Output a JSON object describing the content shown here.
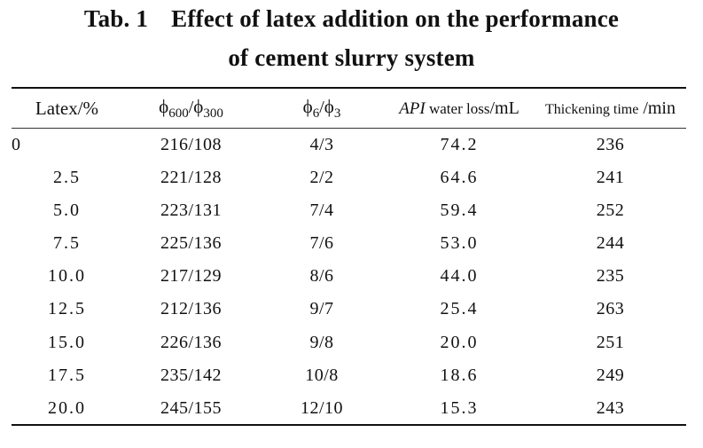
{
  "title": {
    "tab_label": "Tab. 1",
    "line1": "Effect of latex addition on the performance",
    "line2": "of cement slurry system"
  },
  "header": {
    "col0": "Latex/%",
    "col1_sym_a": "ϕ",
    "col1_sub_a": "600",
    "col1_sep": "/",
    "col1_sym_b": "ϕ",
    "col1_sub_b": "300",
    "col2_sym_a": "ϕ",
    "col2_sub_a": "6",
    "col2_sep": "/",
    "col2_sym_b": "ϕ",
    "col2_sub_b": "3",
    "col3_italic": "API",
    "col3_text": " water loss",
    "col3_unit": "/mL",
    "col4_text": "Thickening time",
    "col4_unit": " /min"
  },
  "rows": [
    {
      "latex": "0",
      "phi600_300": "216/108",
      "phi6_3": "4/3",
      "water_loss": "74.2",
      "thickening": "236"
    },
    {
      "latex": "2.5",
      "phi600_300": "221/128",
      "phi6_3": "2/2",
      "water_loss": "64.6",
      "thickening": "241"
    },
    {
      "latex": "5.0",
      "phi600_300": "223/131",
      "phi6_3": "7/4",
      "water_loss": "59.4",
      "thickening": "252"
    },
    {
      "latex": "7.5",
      "phi600_300": "225/136",
      "phi6_3": "7/6",
      "water_loss": "53.0",
      "thickening": "244"
    },
    {
      "latex": "10.0",
      "phi600_300": "217/129",
      "phi6_3": "8/6",
      "water_loss": "44.0",
      "thickening": "235"
    },
    {
      "latex": "12.5",
      "phi600_300": "212/136",
      "phi6_3": "9/7",
      "water_loss": "25.4",
      "thickening": "263"
    },
    {
      "latex": "15.0",
      "phi600_300": "226/136",
      "phi6_3": "9/8",
      "water_loss": "20.0",
      "thickening": "251"
    },
    {
      "latex": "17.5",
      "phi600_300": "235/142",
      "phi6_3": "10/8",
      "water_loss": "18.6",
      "thickening": "249"
    },
    {
      "latex": "20.0",
      "phi600_300": "245/155",
      "phi6_3": "12/10",
      "water_loss": "15.3",
      "thickening": "243"
    }
  ]
}
